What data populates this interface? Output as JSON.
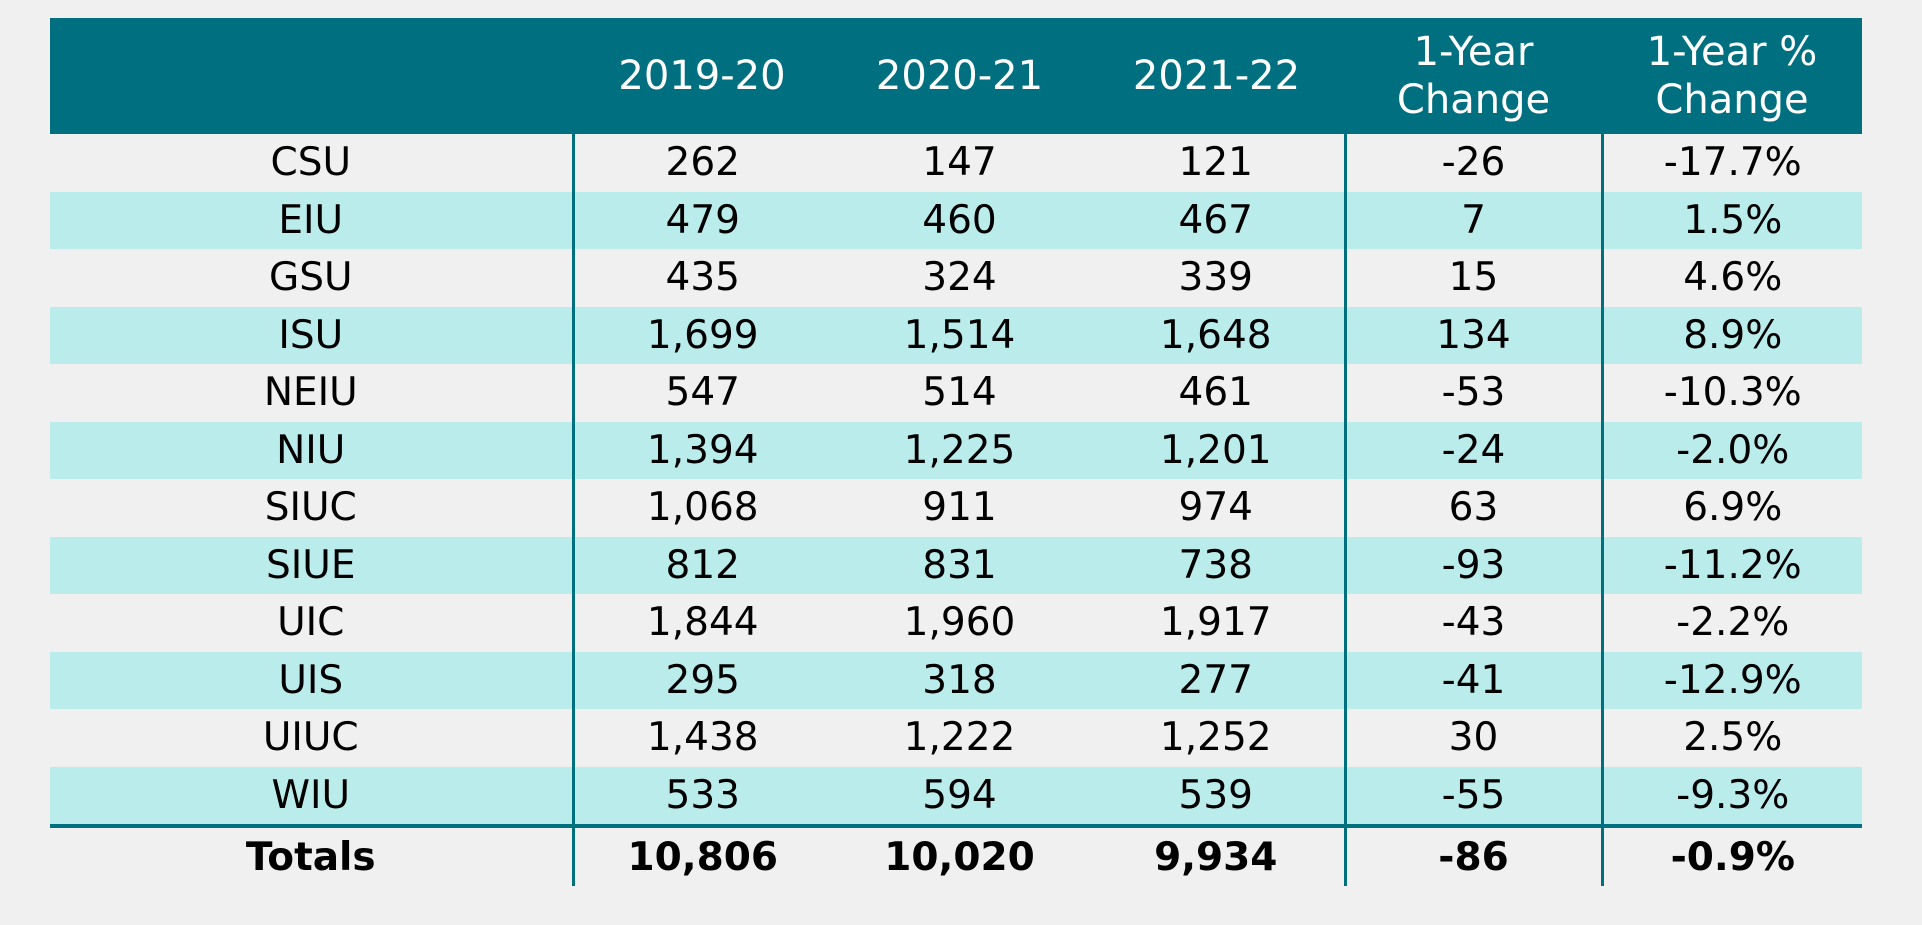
{
  "table": {
    "headers": [
      "",
      "2019-20",
      "2020-21",
      "2021-22",
      "1-Year\nChange",
      "1-Year %\nChange"
    ],
    "rows": [
      [
        "CSU",
        "262",
        "147",
        "121",
        "-26",
        "-17.7%"
      ],
      [
        "EIU",
        "479",
        "460",
        "467",
        "7",
        "1.5%"
      ],
      [
        "GSU",
        "435",
        "324",
        "339",
        "15",
        "4.6%"
      ],
      [
        "ISU",
        "1,699",
        "1,514",
        "1,648",
        "134",
        "8.9%"
      ],
      [
        "NEIU",
        "547",
        "514",
        "461",
        "-53",
        "-10.3%"
      ],
      [
        "NIU",
        "1,394",
        "1,225",
        "1,201",
        "-24",
        "-2.0%"
      ],
      [
        "SIUC",
        "1,068",
        "911",
        "974",
        "63",
        "6.9%"
      ],
      [
        "SIUE",
        "812",
        "831",
        "738",
        "-93",
        "-11.2%"
      ],
      [
        "UIC",
        "1,844",
        "1,960",
        "1,917",
        "-43",
        "-2.2%"
      ],
      [
        "UIS",
        "295",
        "318",
        "277",
        "-41",
        "-12.9%"
      ],
      [
        "UIUC",
        "1,438",
        "1,222",
        "1,252",
        "30",
        "2.5%"
      ],
      [
        "WIU",
        "533",
        "594",
        "539",
        "-55",
        "-9.3%"
      ]
    ],
    "totals": [
      "Totals",
      "10,806",
      "10,020",
      "9,934",
      "-86",
      "-0.9%"
    ]
  }
}
